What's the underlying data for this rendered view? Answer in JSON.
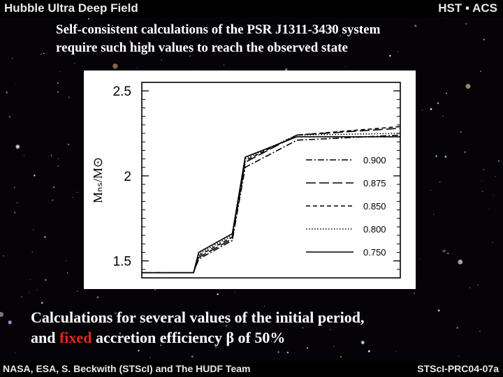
{
  "banner_top": {
    "left": "Hubble Ultra Deep Field",
    "right": "HST ▪ ACS"
  },
  "headline": {
    "line1": "Self-consistent calculations of the PSR J1311-3430 system",
    "line2": "require such high values to reach the observed state"
  },
  "caption": {
    "line1": "Calculations for several values of the initial period,",
    "line2_pre": "and",
    "line2_highlight": "fixed",
    "line2_post": "accretion efficiency β of 50%"
  },
  "banner_bottom": {
    "left": "NASA, ESA, S. Beckwith (STScI) and The HUDF Team",
    "right": "STScI-PRC04-07a"
  },
  "colors": {
    "highlight": "#e0261c",
    "text": "#ffffff"
  },
  "chart_data": {
    "type": "line",
    "title": "",
    "xlabel": "",
    "ylabel": "Mₙₛ/M⊙",
    "ylim": [
      1.4,
      2.55
    ],
    "xticks": "none",
    "yticks": [
      1.5,
      2,
      2.5
    ],
    "ytick_labels": [
      "1.5",
      "2",
      "2.5"
    ],
    "legend_position": "right",
    "series": [
      {
        "name": "0.900",
        "dash": "dashdot",
        "x": [
          0,
          0.2,
          0.22,
          0.35,
          0.4,
          0.6,
          1.0
        ],
        "values": [
          1.43,
          1.43,
          1.51,
          1.62,
          2.05,
          2.21,
          2.24
        ]
      },
      {
        "name": "0.875",
        "dash": "longdash",
        "x": [
          0,
          0.2,
          0.22,
          0.35,
          0.4,
          0.6,
          1.0
        ],
        "values": [
          1.43,
          1.43,
          1.52,
          1.63,
          2.08,
          2.24,
          2.28
        ]
      },
      {
        "name": "0.850",
        "dash": "dash",
        "x": [
          0,
          0.2,
          0.22,
          0.35,
          0.4,
          0.6,
          1.0
        ],
        "values": [
          1.43,
          1.43,
          1.53,
          1.64,
          2.09,
          2.24,
          2.29
        ]
      },
      {
        "name": "0.800",
        "dash": "dot",
        "x": [
          0,
          0.2,
          0.22,
          0.35,
          0.4,
          0.6,
          1.0
        ],
        "values": [
          1.43,
          1.43,
          1.54,
          1.65,
          2.1,
          2.24,
          2.25
        ]
      },
      {
        "name": "0.750",
        "dash": "solid",
        "x": [
          0,
          0.2,
          0.22,
          0.35,
          0.4,
          0.6,
          1.0
        ],
        "values": [
          1.43,
          1.43,
          1.55,
          1.66,
          2.11,
          2.23,
          2.23
        ]
      }
    ]
  }
}
